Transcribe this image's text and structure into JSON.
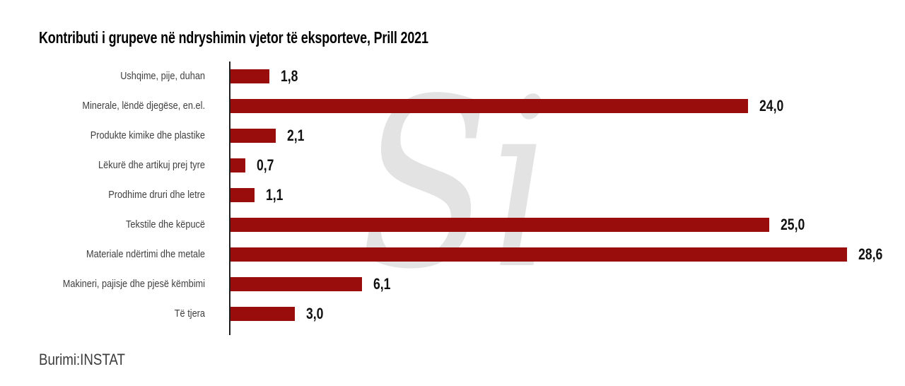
{
  "title": "Kontributi i grupeve në ndryshimin vjetor të eksporteve, Prill 2021",
  "source": "Burimi:INSTAT",
  "watermark": {
    "text": "Si",
    "color": "#E3E3E3",
    "description": "instat-logo-watermark"
  },
  "colors": {
    "bar": "#990D0D",
    "axis": "#1F1F1F",
    "title_text": "#000000",
    "category_text": "#3F3F3F",
    "value_text": "#111111",
    "source_text": "#3C3C3C",
    "background": "#FFFFFF"
  },
  "chart_data": {
    "type": "bar",
    "orientation": "horizontal",
    "title": "Kontributi i grupeve në ndryshimin vjetor të eksporteve, Prill 2021",
    "categories": [
      "Ushqime, pije, duhan",
      "Minerale, lëndë djegëse, en.el.",
      "Produkte kimike dhe plastike",
      "Lëkurë dhe artikuj prej tyre",
      "Prodhime druri dhe letre",
      "Tekstile dhe këpucë",
      "Materiale ndërtimi dhe metale",
      "Makineri, pajisje dhe pjesë këmbimi",
      "Të tjera"
    ],
    "values": [
      1.8,
      24.0,
      2.1,
      0.7,
      1.1,
      25.0,
      28.6,
      6.1,
      3.0
    ],
    "value_labels": [
      "1,8",
      "24,0",
      "2,1",
      "0,7",
      "1,1",
      "25,0",
      "28,6",
      "6,1",
      "3,0"
    ],
    "xlabel": "",
    "ylabel": "",
    "xlim": [
      0,
      28.6
    ],
    "grid": false,
    "legend": null,
    "bar_color": "#990D0D",
    "value_label_position": "right-of-bar",
    "source": "Burimi:INSTAT"
  }
}
